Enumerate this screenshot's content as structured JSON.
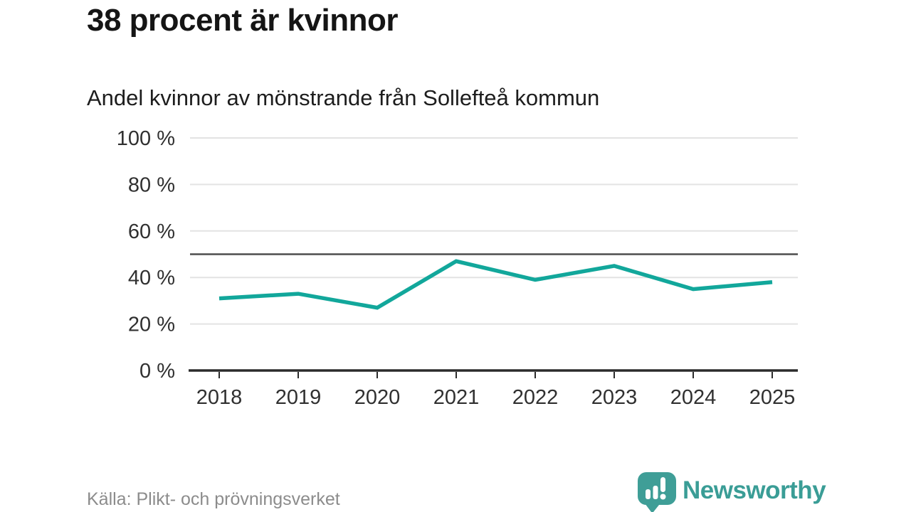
{
  "chart_data": {
    "type": "line",
    "title": "38 procent är kvinnor",
    "subtitle": "Andel kvinnor av mönstrande från Sollefteå kommun",
    "x": [
      "2018",
      "2019",
      "2020",
      "2021",
      "2022",
      "2023",
      "2024",
      "2025"
    ],
    "series": [
      {
        "name": "Andel kvinnor av mönstrande",
        "values": [
          31,
          33,
          27,
          47,
          39,
          45,
          35,
          38
        ]
      }
    ],
    "ylim": [
      0,
      100
    ],
    "yticks": [
      0,
      20,
      40,
      60,
      80,
      100
    ],
    "ytick_labels": [
      "0 %",
      "20 %",
      "40 %",
      "60 %",
      "80 %",
      "100 %"
    ],
    "reference_line": 50,
    "grid": true,
    "legend": "none",
    "line_color": "#12a79b",
    "reference_color": "#4d4d4d",
    "grid_color": "#e3e3e3",
    "axis_color": "#2b2b2b"
  },
  "footer": {
    "source": "Källa: Plikt- och prövningsverket",
    "brand": "Newsworthy",
    "brand_color": "#3a9d96"
  }
}
